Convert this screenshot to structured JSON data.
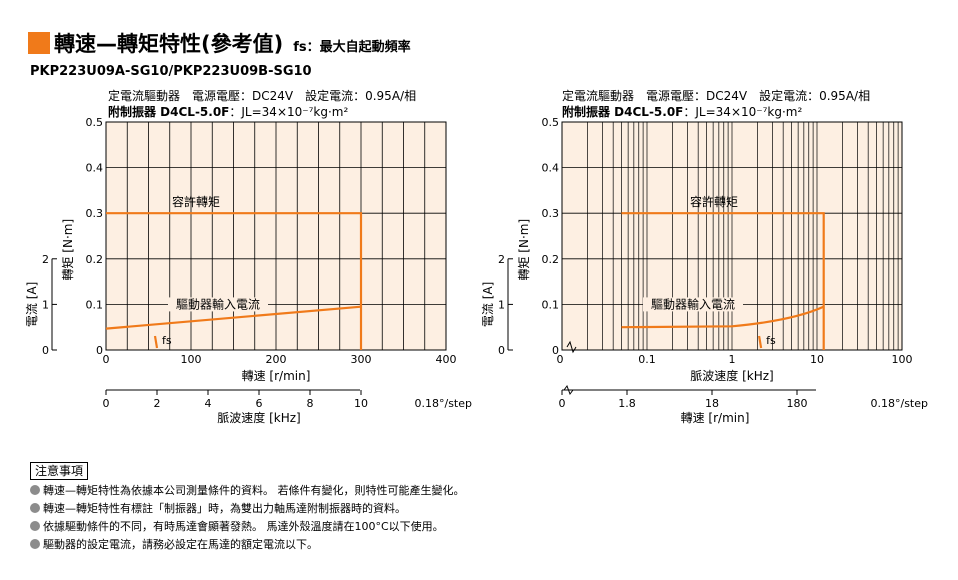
{
  "title": "轉速—轉矩特性(參考值)",
  "title_note": "fs：最大自起動頻率",
  "model": "PKP223U09A-SG10/PKP223U09B-SG10",
  "condition_line1": "定電流驅動器　電源電壓：DC24V　設定電流：0.95A/相",
  "condition_line2_label": "附制振器 D4CL-5.0F",
  "condition_line2_value": "：JL=34×10⁻⁷kg·m²",
  "colors": {
    "accent": "#f07a1a",
    "plot_bg": "#fdefe2",
    "grid": "#000000"
  },
  "chart_data": [
    {
      "type": "line",
      "x_scale": "linear",
      "x_unit_label": "轉速 [r/min]",
      "x_ticks": [
        "0",
        "100",
        "200",
        "300",
        "400"
      ],
      "x_range": [
        0,
        400
      ],
      "secondary_x_label": "脈波速度 [kHz]",
      "secondary_x_ticks": [
        "0",
        "2",
        "4",
        "6",
        "8",
        "10"
      ],
      "secondary_x_suffix": "0.18°/step",
      "y_label": "轉矩 [N·m]",
      "y_ticks": [
        "0",
        "0.1",
        "0.2",
        "0.3",
        "0.4",
        "0.5"
      ],
      "y_range": [
        0,
        0.5
      ],
      "y2_label": "電流 [A]",
      "y2_ticks": [
        "0",
        "1",
        "2"
      ],
      "series": [
        {
          "name": "容許轉矩",
          "x": [
            0,
            300,
            300
          ],
          "y": [
            0.3,
            0.3,
            0
          ]
        },
        {
          "name": "驅動器輸入電流",
          "x": [
            0,
            300
          ],
          "y": [
            0.047,
            0.095
          ]
        }
      ],
      "fs_label": "fs",
      "fs_x": 60,
      "grid": true
    },
    {
      "type": "line",
      "x_scale": "log",
      "x_unit_label": "脈波速度 [kHz]",
      "x_ticks": [
        "0",
        "0.1",
        "1",
        "10",
        "100"
      ],
      "x_range": [
        0.01,
        100
      ],
      "secondary_x_label": "轉速 [r/min]",
      "secondary_x_ticks": [
        "0",
        "1.8",
        "18",
        "180"
      ],
      "secondary_x_suffix": "0.18°/step",
      "y_label": "轉矩 [N·m]",
      "y_ticks": [
        "0",
        "0.1",
        "0.2",
        "0.3",
        "0.4",
        "0.5"
      ],
      "y_range": [
        0,
        0.5
      ],
      "y2_label": "電流 [A]",
      "y2_ticks": [
        "0",
        "1",
        "2"
      ],
      "series": [
        {
          "name": "容許轉矩",
          "x": [
            0.05,
            12,
            12
          ],
          "y": [
            0.3,
            0.3,
            0
          ]
        },
        {
          "name": "驅動器輸入電流",
          "x": [
            0.05,
            1,
            3,
            7,
            12
          ],
          "y": [
            0.05,
            0.052,
            0.06,
            0.075,
            0.095
          ]
        }
      ],
      "fs_label": "fs",
      "fs_x": 2.2,
      "grid": true
    }
  ],
  "notes_title": "注意事項",
  "notes": [
    "轉速—轉矩特性為依據本公司測量條件的資料。 若條件有變化，則特性可能產生變化。",
    "轉速—轉矩特性有標註「制振器」時，為雙出力軸馬達附制振器時的資料。",
    "依據驅動條件的不同，有時馬達會顯著發熱。 馬達外殼溫度請在100°C以下使用。",
    "驅動器的設定電流，請務必設定在馬達的額定電流以下。"
  ]
}
